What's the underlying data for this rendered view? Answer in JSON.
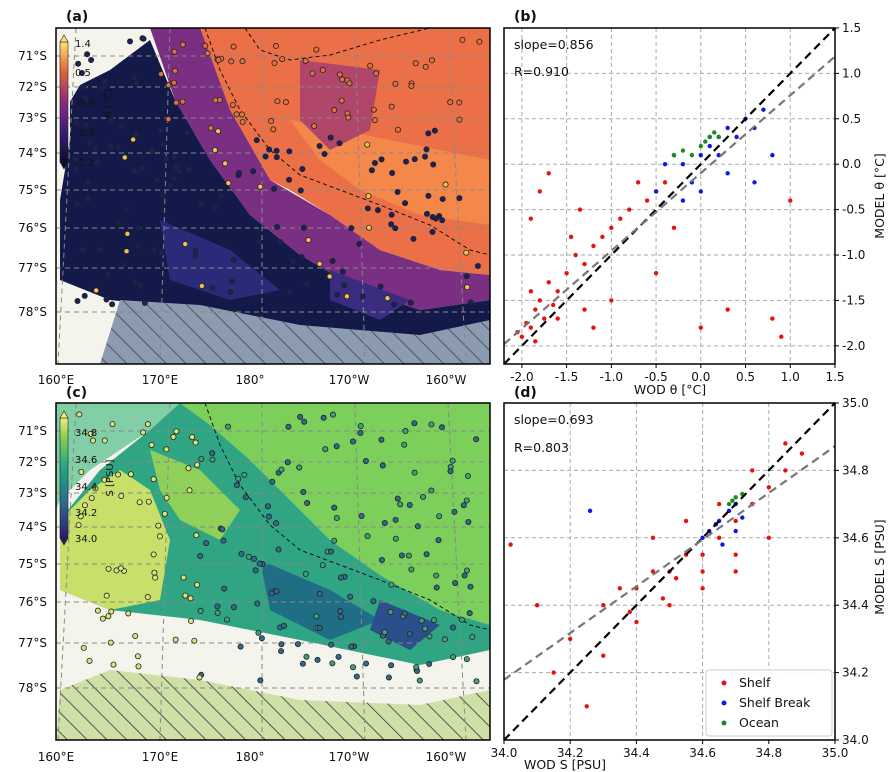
{
  "panels": [
    {
      "id": "a",
      "label": "(a)",
      "kind": "map",
      "variable_label": "θ [°C]",
      "lat_ticks": [
        "71°S",
        "72°S",
        "73°S",
        "74°S",
        "75°S",
        "76°S",
        "77°S",
        "78°S"
      ],
      "lon_ticks": [
        "160°E",
        "170°E",
        "180°",
        "170°W",
        "160°W"
      ],
      "colorbar": {
        "label": "θ [°C]",
        "ticks": [
          "1.4",
          "0.5",
          "-0.4",
          "-1.3",
          "-2.2"
        ],
        "range": [
          -2.2,
          1.4
        ],
        "colormap": "inferno-like"
      }
    },
    {
      "id": "c",
      "label": "(c)",
      "kind": "map",
      "variable_label": "S [PSU]",
      "lat_ticks": [
        "71°S",
        "72°S",
        "73°S",
        "74°S",
        "75°S",
        "76°S",
        "77°S",
        "78°S"
      ],
      "lon_ticks": [
        "160°E",
        "170°E",
        "180°",
        "170°W",
        "160°W"
      ],
      "colorbar": {
        "label": "S [PSU]",
        "ticks": [
          "34.8",
          "34.6",
          "34.4",
          "34.2",
          "34.0"
        ],
        "range": [
          34.0,
          34.9
        ],
        "colormap": "viridis"
      }
    }
  ],
  "chart_data": [
    {
      "id": "b",
      "type": "scatter",
      "label": "(b)",
      "xlabel": "WOD θ [°C]",
      "ylabel": "MODEL θ [°C]",
      "xlim": [
        -2.2,
        1.5
      ],
      "ylim": [
        -2.2,
        1.5
      ],
      "x_ticks": [
        "-2.0",
        "-1.5",
        "-1.0",
        "-0.5",
        "0.0",
        "0.5",
        "1.0",
        "1.5"
      ],
      "x_tick_values": [
        -2.0,
        -1.5,
        -1.0,
        -0.5,
        0.0,
        0.5,
        1.0,
        1.5
      ],
      "y_ticks": [
        "1.5",
        "1.0",
        "0.5",
        "0.0",
        "-0.5",
        "-1.0",
        "-1.5",
        "-2.0"
      ],
      "y_tick_values": [
        1.5,
        1.0,
        0.5,
        0.0,
        -0.5,
        -1.0,
        -1.5,
        -2.0
      ],
      "grid": true,
      "annotations": [
        "slope=0.856",
        "R=0.910"
      ],
      "slope": 0.856,
      "R": 0.91,
      "one_to_one_line": true,
      "series": [
        {
          "name": "Shelf",
          "color": "#e8120c",
          "points": [
            [
              -2.0,
              -1.9
            ],
            [
              -1.9,
              -1.8
            ],
            [
              -1.85,
              -1.6
            ],
            [
              -1.8,
              -1.5
            ],
            [
              -1.7,
              -1.3
            ],
            [
              -1.9,
              -1.4
            ],
            [
              -1.95,
              -1.75
            ],
            [
              -2.05,
              -1.85
            ],
            [
              -1.6,
              -1.4
            ],
            [
              -1.5,
              -1.2
            ],
            [
              -1.4,
              -1.0
            ],
            [
              -1.3,
              -1.1
            ],
            [
              -1.2,
              -0.9
            ],
            [
              -1.1,
              -0.8
            ],
            [
              -1.0,
              -0.7
            ],
            [
              -0.9,
              -0.6
            ],
            [
              -0.8,
              -0.5
            ],
            [
              -0.6,
              -0.4
            ],
            [
              -0.5,
              -0.3
            ],
            [
              -0.4,
              -0.2
            ],
            [
              -1.8,
              -0.3
            ],
            [
              -1.7,
              -0.1
            ],
            [
              -1.9,
              -0.6
            ],
            [
              -1.6,
              -1.7
            ],
            [
              -1.3,
              -1.6
            ],
            [
              -1.0,
              -1.5
            ],
            [
              -0.5,
              -1.2
            ],
            [
              0.0,
              -1.8
            ],
            [
              0.3,
              -1.6
            ],
            [
              0.8,
              -1.7
            ],
            [
              0.9,
              -1.9
            ],
            [
              1.0,
              -0.4
            ],
            [
              -0.3,
              -0.7
            ],
            [
              -1.2,
              -1.8
            ],
            [
              -1.85,
              -1.95
            ],
            [
              -1.75,
              -1.7
            ],
            [
              -1.65,
              -1.55
            ],
            [
              -1.45,
              -0.8
            ],
            [
              -1.35,
              -0.5
            ],
            [
              -0.7,
              -0.2
            ]
          ]
        },
        {
          "name": "Shelf Break",
          "color": "#1018e8",
          "points": [
            [
              -0.4,
              0.0
            ],
            [
              -0.3,
              0.1
            ],
            [
              -0.2,
              0.0
            ],
            [
              -0.1,
              -0.2
            ],
            [
              0.0,
              0.1
            ],
            [
              0.1,
              0.2
            ],
            [
              0.2,
              0.3
            ],
            [
              0.3,
              0.4
            ],
            [
              0.4,
              0.3
            ],
            [
              0.5,
              0.5
            ],
            [
              0.6,
              0.4
            ],
            [
              0.7,
              0.6
            ],
            [
              0.8,
              0.1
            ],
            [
              -0.5,
              -0.3
            ],
            [
              -0.2,
              -0.4
            ],
            [
              0.0,
              -0.3
            ],
            [
              0.3,
              -0.1
            ],
            [
              0.6,
              -0.2
            ],
            [
              0.2,
              0.1
            ],
            [
              0.1,
              0.3
            ]
          ]
        },
        {
          "name": "Ocean",
          "color": "#1e8a1e",
          "points": [
            [
              -0.3,
              0.1
            ],
            [
              -0.2,
              0.15
            ],
            [
              -0.1,
              0.1
            ],
            [
              0.0,
              0.2
            ],
            [
              0.05,
              0.25
            ],
            [
              0.1,
              0.3
            ],
            [
              0.15,
              0.35
            ],
            [
              0.2,
              0.3
            ]
          ]
        }
      ]
    },
    {
      "id": "d",
      "type": "scatter",
      "label": "(d)",
      "xlabel": "WOD S [PSU]",
      "ylabel": "MODEL S [PSU]",
      "xlim": [
        34.0,
        35.0
      ],
      "ylim": [
        34.0,
        35.0
      ],
      "x_ticks": [
        "34.0",
        "34.2",
        "34.4",
        "34.6",
        "34.8",
        "35.0"
      ],
      "x_tick_values": [
        34.0,
        34.2,
        34.4,
        34.6,
        34.8,
        35.0
      ],
      "y_ticks": [
        "35.0",
        "34.8",
        "34.6",
        "34.4",
        "34.2",
        "34.0"
      ],
      "y_tick_values": [
        35.0,
        34.8,
        34.6,
        34.4,
        34.2,
        34.0
      ],
      "grid": true,
      "annotations": [
        "slope=0.693",
        "R=0.803"
      ],
      "slope": 0.693,
      "R": 0.803,
      "one_to_one_line": true,
      "legend": {
        "position": "lower-right",
        "entries": [
          "Shelf",
          "Shelf Break",
          "Ocean"
        ]
      },
      "series": [
        {
          "name": "Shelf",
          "color": "#e8120c",
          "points": [
            [
              34.3,
              34.4
            ],
            [
              34.35,
              34.45
            ],
            [
              34.4,
              34.45
            ],
            [
              34.45,
              34.5
            ],
            [
              34.5,
              34.5
            ],
            [
              34.55,
              34.55
            ],
            [
              34.6,
              34.55
            ],
            [
              34.65,
              34.6
            ],
            [
              34.7,
              34.65
            ],
            [
              34.75,
              34.7
            ],
            [
              34.8,
              34.75
            ],
            [
              34.85,
              34.8
            ],
            [
              34.9,
              34.85
            ],
            [
              34.6,
              34.45
            ],
            [
              34.7,
              34.5
            ],
            [
              34.8,
              34.6
            ],
            [
              34.5,
              34.4
            ],
            [
              34.4,
              34.35
            ],
            [
              34.2,
              34.3
            ],
            [
              34.1,
              34.4
            ],
            [
              34.02,
              34.58
            ],
            [
              34.15,
              34.2
            ],
            [
              34.25,
              34.1
            ],
            [
              34.3,
              34.25
            ],
            [
              34.45,
              34.6
            ],
            [
              34.55,
              34.65
            ],
            [
              34.65,
              34.7
            ],
            [
              34.75,
              34.8
            ],
            [
              34.85,
              34.88
            ],
            [
              34.7,
              34.55
            ],
            [
              34.6,
              34.5
            ],
            [
              34.52,
              34.48
            ],
            [
              34.48,
              34.42
            ],
            [
              34.38,
              34.38
            ]
          ]
        },
        {
          "name": "Shelf Break",
          "color": "#1018e8",
          "points": [
            [
              34.6,
              34.6
            ],
            [
              34.62,
              34.62
            ],
            [
              34.65,
              34.65
            ],
            [
              34.68,
              34.68
            ],
            [
              34.7,
              34.7
            ],
            [
              34.72,
              34.66
            ],
            [
              34.66,
              34.58
            ],
            [
              34.64,
              34.64
            ],
            [
              34.26,
              34.68
            ],
            [
              34.7,
              34.62
            ]
          ]
        },
        {
          "name": "Ocean",
          "color": "#1e8a1e",
          "points": [
            [
              34.68,
              34.7
            ],
            [
              34.7,
              34.72
            ],
            [
              34.72,
              34.73
            ],
            [
              34.69,
              34.71
            ]
          ]
        }
      ]
    }
  ]
}
